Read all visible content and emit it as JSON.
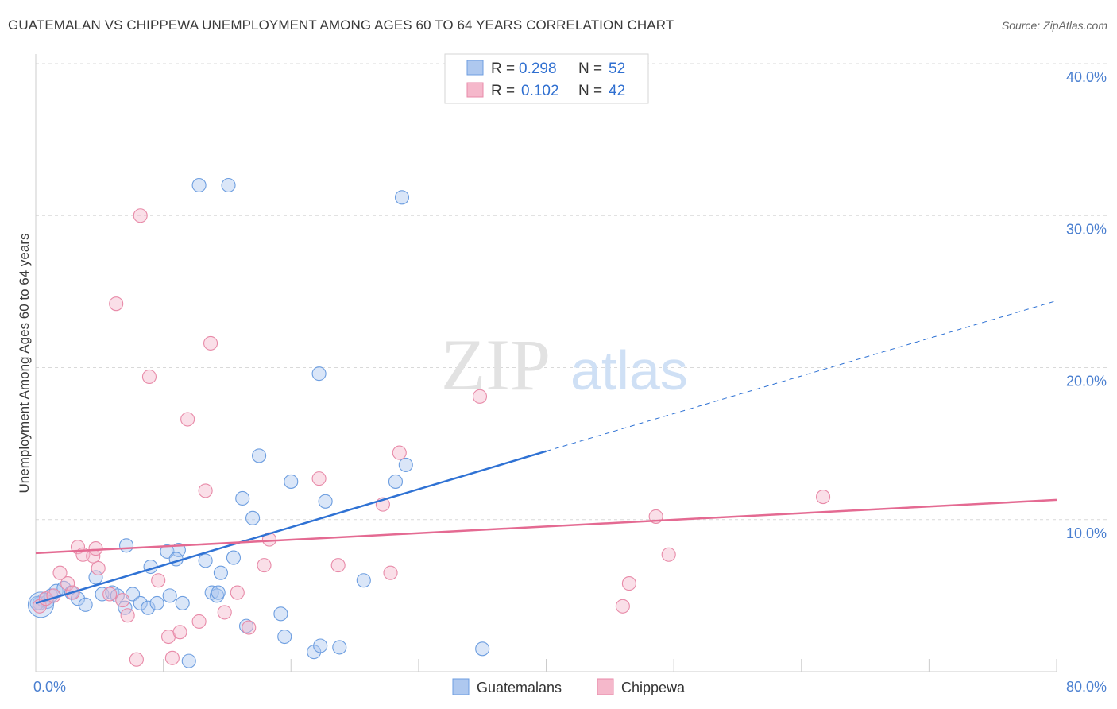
{
  "title": "GUATEMALAN VS CHIPPEWA UNEMPLOYMENT AMONG AGES 60 TO 64 YEARS CORRELATION CHART",
  "source": "Source: ZipAtlas.com",
  "watermark": {
    "zip": "ZIP",
    "atlas": "atlas"
  },
  "legend": {
    "rows": [
      {
        "r_label": "R = ",
        "r_value": "0.298",
        "n_label": "N = ",
        "n_value": "52"
      },
      {
        "r_label": "R = ",
        "r_value": "0.102",
        "n_label": "N = ",
        "n_value": "42"
      }
    ]
  },
  "bottom_legend": [
    "Guatemalans",
    "Chippewa"
  ],
  "colors": {
    "blue_fill": "#aec8ef",
    "blue_stroke": "#6d9ee0",
    "blue_line": "#2f72d4",
    "pink_fill": "#f5b8cb",
    "pink_stroke": "#e88aa8",
    "pink_line": "#e46a92",
    "tick": "#4a7fd0",
    "grid": "#d9d9d9"
  },
  "chart_data": {
    "type": "scatter",
    "title": "GUATEMALAN VS CHIPPEWA UNEMPLOYMENT AMONG AGES 60 TO 64 YEARS CORRELATION CHART",
    "xlabel": "",
    "ylabel": "Unemployment Among Ages 60 to 64 years",
    "xlim": [
      0,
      80
    ],
    "ylim": [
      0,
      40
    ],
    "x_tick_labels": [
      "0.0%",
      "80.0%"
    ],
    "y_ticks": [
      10,
      20,
      30,
      40
    ],
    "y_tick_labels": [
      "10.0%",
      "20.0%",
      "30.0%",
      "40.0%"
    ],
    "grid": true,
    "legend_position": "top-center",
    "series": [
      {
        "name": "Guatemalans",
        "color": "#aec8ef",
        "r": 0.298,
        "n": 52,
        "trend": {
          "x0": 0,
          "y0": 4.5,
          "x1": 40,
          "y1": 14.5,
          "dashed_to_x": 80,
          "dashed_to_y": 24.4
        },
        "points": [
          [
            0.3,
            4.5
          ],
          [
            0.6,
            4.7
          ],
          [
            0.9,
            4.6
          ],
          [
            1.2,
            5.0
          ],
          [
            1.6,
            5.3
          ],
          [
            2.2,
            5.5
          ],
          [
            2.8,
            5.2
          ],
          [
            3.3,
            4.8
          ],
          [
            3.9,
            4.4
          ],
          [
            4.7,
            6.2
          ],
          [
            5.2,
            5.1
          ],
          [
            6.0,
            5.2
          ],
          [
            6.4,
            5.0
          ],
          [
            7.0,
            4.2
          ],
          [
            7.6,
            5.1
          ],
          [
            8.2,
            4.5
          ],
          [
            9.0,
            6.9
          ],
          [
            8.8,
            4.2
          ],
          [
            9.5,
            4.5
          ],
          [
            10.3,
            7.9
          ],
          [
            11.2,
            8.0
          ],
          [
            11.0,
            7.4
          ],
          [
            10.5,
            5.0
          ],
          [
            11.5,
            4.5
          ],
          [
            12.0,
            0.7
          ],
          [
            13.3,
            7.3
          ],
          [
            13.8,
            5.2
          ],
          [
            14.5,
            6.5
          ],
          [
            14.2,
            5.0
          ],
          [
            15.5,
            7.5
          ],
          [
            16.2,
            11.4
          ],
          [
            17.0,
            10.1
          ],
          [
            17.5,
            14.2
          ],
          [
            16.5,
            3.0
          ],
          [
            19.2,
            3.8
          ],
          [
            19.5,
            2.3
          ],
          [
            20.0,
            12.5
          ],
          [
            21.8,
            1.3
          ],
          [
            22.3,
            1.7
          ],
          [
            22.7,
            11.2
          ],
          [
            23.8,
            1.6
          ],
          [
            25.7,
            6.0
          ],
          [
            28.2,
            12.5
          ],
          [
            29.0,
            13.6
          ],
          [
            7.1,
            8.3
          ],
          [
            12.8,
            32.0
          ],
          [
            15.1,
            32.0
          ],
          [
            28.7,
            31.2
          ],
          [
            22.2,
            19.6
          ],
          [
            35.0,
            1.5
          ],
          [
            0.1,
            4.5
          ],
          [
            14.3,
            5.2
          ]
        ]
      },
      {
        "name": "Chippewa",
        "color": "#f5b8cb",
        "r": 0.102,
        "n": 42,
        "trend": {
          "x0": 0,
          "y0": 7.8,
          "x1": 80,
          "y1": 11.3
        },
        "points": [
          [
            0.3,
            4.3
          ],
          [
            0.8,
            4.8
          ],
          [
            1.4,
            5.0
          ],
          [
            1.9,
            6.5
          ],
          [
            2.5,
            5.8
          ],
          [
            2.9,
            5.2
          ],
          [
            3.3,
            8.2
          ],
          [
            3.7,
            7.7
          ],
          [
            4.5,
            7.6
          ],
          [
            4.7,
            8.1
          ],
          [
            4.9,
            6.8
          ],
          [
            5.8,
            5.1
          ],
          [
            6.3,
            24.2
          ],
          [
            6.8,
            4.7
          ],
          [
            7.2,
            3.7
          ],
          [
            7.9,
            0.8
          ],
          [
            8.2,
            30.0
          ],
          [
            8.9,
            19.4
          ],
          [
            9.6,
            6.0
          ],
          [
            10.4,
            2.3
          ],
          [
            10.7,
            0.9
          ],
          [
            11.3,
            2.6
          ],
          [
            11.9,
            16.6
          ],
          [
            12.8,
            3.3
          ],
          [
            13.3,
            11.9
          ],
          [
            13.7,
            21.6
          ],
          [
            14.8,
            3.9
          ],
          [
            15.8,
            5.2
          ],
          [
            16.7,
            2.9
          ],
          [
            17.9,
            7.0
          ],
          [
            18.3,
            8.7
          ],
          [
            22.2,
            12.7
          ],
          [
            23.7,
            7.0
          ],
          [
            27.2,
            11.0
          ],
          [
            27.8,
            6.5
          ],
          [
            28.5,
            14.4
          ],
          [
            34.8,
            18.1
          ],
          [
            46.0,
            4.3
          ],
          [
            46.5,
            5.8
          ],
          [
            48.6,
            10.2
          ],
          [
            49.6,
            7.7
          ],
          [
            61.7,
            11.5
          ]
        ]
      }
    ]
  }
}
